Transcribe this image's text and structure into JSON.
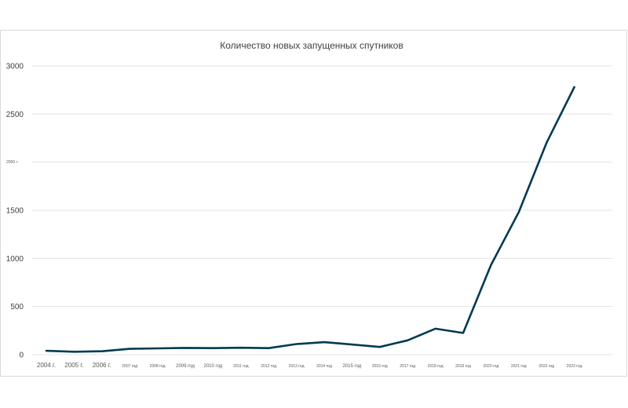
{
  "chart_data": {
    "type": "line",
    "title": "Количество новых запущенных спутников",
    "xlabel": "",
    "ylabel": "",
    "ylim": [
      0,
      3000
    ],
    "grid": true,
    "y_ticks": [
      {
        "value": 0,
        "label": "0"
      },
      {
        "value": 500,
        "label": "500"
      },
      {
        "value": 1000,
        "label": "1000"
      },
      {
        "value": 1500,
        "label": "1500"
      },
      {
        "value": 2000,
        "label": "2000 г."
      },
      {
        "value": 2500,
        "label": "2500"
      },
      {
        "value": 3000,
        "label": "3000"
      }
    ],
    "categories": [
      "2004 г.",
      "2005 г.",
      "2006 г.",
      "2007 год",
      "2008 год",
      "2009 год",
      "2010 год",
      "2011 год",
      "2012 год",
      "2013 год",
      "2014 год",
      "2015 год",
      "2016 год",
      "2017 год",
      "2018 год",
      "2019 год",
      "2020 год",
      "2021 год",
      "2022 год",
      "2023 год"
    ],
    "series": [
      {
        "name": "Количество новых запущенных спутников",
        "color": "#003a52",
        "values": [
          40,
          30,
          35,
          60,
          65,
          70,
          68,
          72,
          68,
          110,
          130,
          105,
          80,
          148,
          270,
          225,
          930,
          1480,
          2200,
          2780
        ]
      }
    ]
  }
}
